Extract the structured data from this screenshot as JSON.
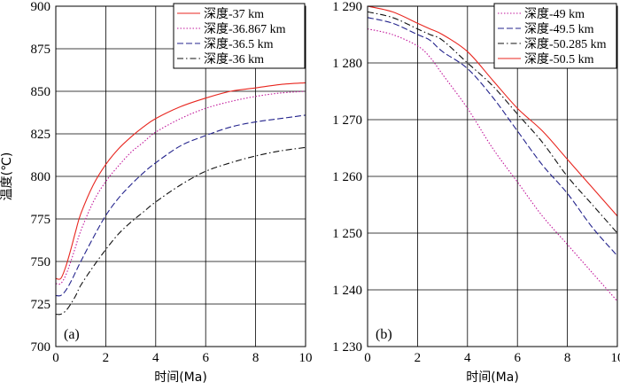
{
  "chart_data": [
    {
      "type": "line",
      "panel_label": "(a)",
      "xlabel": "时间(Ma)",
      "ylabel": "温度(℃)",
      "xlim": [
        0,
        10
      ],
      "ylim": [
        700,
        900
      ],
      "xticks": [
        "0",
        "2",
        "4",
        "6",
        "8",
        "10"
      ],
      "yticks": [
        "700",
        "725",
        "750",
        "775",
        "800",
        "825",
        "850",
        "875",
        "900"
      ],
      "grid": true,
      "legend_position": "top-right",
      "series": [
        {
          "name": "深度-37 km",
          "color": "#e8261f",
          "dash": "solid",
          "x": [
            0,
            0.2,
            0.4,
            0.6,
            0.8,
            1,
            1.5,
            2,
            2.5,
            3,
            3.5,
            4,
            5,
            6,
            7,
            8,
            9,
            10
          ],
          "y": [
            740,
            740,
            747,
            757,
            768,
            778,
            795,
            807,
            816,
            823,
            829,
            834,
            841,
            846,
            850,
            852,
            854,
            855
          ]
        },
        {
          "name": "深度-36.867 km",
          "color": "#c2189b",
          "dash": "dotted",
          "x": [
            0,
            0.2,
            0.4,
            0.6,
            0.8,
            1,
            1.5,
            2,
            2.5,
            3,
            3.5,
            4,
            5,
            6,
            7,
            8,
            9,
            10
          ],
          "y": [
            737,
            737,
            742,
            750,
            759,
            768,
            785,
            797,
            806,
            814,
            820,
            826,
            834,
            840,
            844,
            847,
            849,
            850
          ]
        },
        {
          "name": "深度-36.5 km",
          "color": "#23238c",
          "dash": "dashed",
          "x": [
            0,
            0.2,
            0.4,
            0.6,
            0.8,
            1,
            1.5,
            2,
            2.5,
            3,
            3.5,
            4,
            5,
            6,
            7,
            8,
            9,
            10
          ],
          "y": [
            730,
            730,
            733,
            738,
            744,
            750,
            764,
            777,
            787,
            795,
            802,
            808,
            818,
            824,
            829,
            832,
            834,
            836
          ]
        },
        {
          "name": "深度-36 km",
          "color": "#111111",
          "dash": "dashdot",
          "x": [
            0,
            0.2,
            0.4,
            0.6,
            0.8,
            1,
            1.5,
            2,
            2.5,
            3,
            3.5,
            4,
            5,
            6,
            7,
            8,
            9,
            10
          ],
          "y": [
            719,
            719,
            721,
            725,
            730,
            736,
            747,
            757,
            766,
            773,
            779,
            785,
            795,
            803,
            808,
            812,
            815,
            817
          ]
        }
      ]
    },
    {
      "type": "line",
      "panel_label": "(b)",
      "xlabel": "时间(Ma)",
      "ylabel": "",
      "xlim": [
        0,
        10
      ],
      "ylim": [
        1230,
        1290
      ],
      "xticks": [
        "0",
        "2",
        "4",
        "6",
        "8",
        "10"
      ],
      "yticks": [
        "1 230",
        "1 240",
        "1 250",
        "1 260",
        "1 270",
        "1 280",
        "1 290"
      ],
      "grid": true,
      "legend_position": "top-right",
      "series": [
        {
          "name": "深度-49 km",
          "color": "#c2189b",
          "dash": "dotted",
          "x": [
            0,
            1,
            2,
            2.5,
            3,
            4,
            5,
            6,
            7,
            8,
            9,
            10
          ],
          "y": [
            1286,
            1285,
            1283,
            1281,
            1278,
            1272,
            1265,
            1259,
            1253,
            1248,
            1243,
            1238
          ]
        },
        {
          "name": "深度-49.5 km",
          "color": "#23238c",
          "dash": "dashed",
          "x": [
            0,
            1,
            2,
            2.5,
            3,
            4,
            5,
            6,
            7,
            8,
            9,
            10
          ],
          "y": [
            1288,
            1287,
            1285,
            1284,
            1282,
            1279,
            1274,
            1268,
            1262,
            1257,
            1251,
            1246
          ]
        },
        {
          "name": "深度-50.285 km",
          "color": "#111111",
          "dash": "dashdot",
          "x": [
            0,
            1,
            2,
            2.5,
            3,
            4,
            5,
            6,
            7,
            8,
            9,
            10
          ],
          "y": [
            1289,
            1288,
            1286,
            1285,
            1284,
            1280,
            1276,
            1271,
            1266,
            1260,
            1255,
            1250
          ]
        },
        {
          "name": "深度-50.5 km",
          "color": "#e8261f",
          "dash": "solid",
          "x": [
            0,
            1,
            2,
            2.5,
            3,
            4,
            5,
            6,
            7,
            8,
            9,
            10
          ],
          "y": [
            1290,
            1289,
            1287,
            1286,
            1285,
            1282,
            1277,
            1272,
            1268,
            1263,
            1258,
            1253
          ]
        }
      ]
    }
  ]
}
